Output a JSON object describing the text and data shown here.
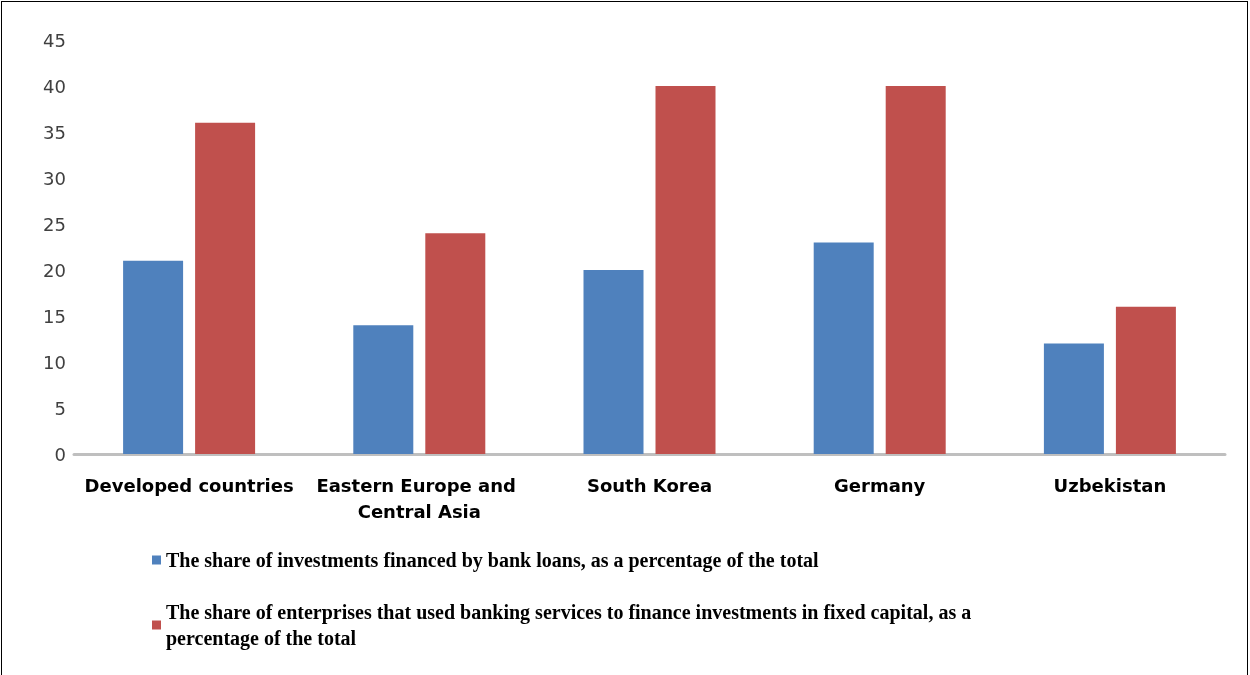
{
  "chart_data": {
    "type": "bar",
    "categories": [
      "Developed countries",
      "Eastern Europe and Central Asia",
      "South Korea",
      "Germany",
      "Uzbekistan"
    ],
    "series": [
      {
        "name": "The share of investments financed by bank loans, as a percentage of the total",
        "color": "#4f81bd",
        "values": [
          21,
          14,
          20,
          23,
          12
        ]
      },
      {
        "name": "The share of enterprises that used banking services to finance investments in fixed capital, as a percentage of the total",
        "color": "#c0504d",
        "values": [
          36,
          24,
          40,
          40,
          16
        ]
      }
    ],
    "ylim": [
      0,
      45
    ],
    "yticks": [
      0,
      5,
      10,
      15,
      20,
      25,
      30,
      35,
      40,
      45
    ],
    "grid": false,
    "legend": "bottom"
  }
}
